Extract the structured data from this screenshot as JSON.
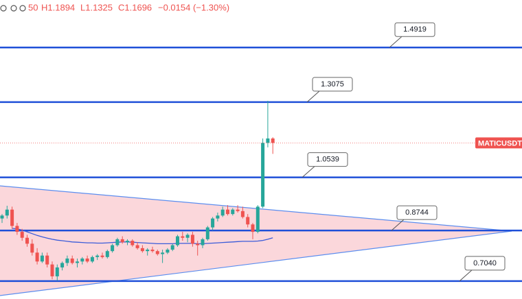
{
  "header": {
    "open_fragment": "50",
    "high": "H1.1894",
    "low": "L1.1325",
    "close": "C1.1696",
    "change": "−0.0154 (−1.30%)"
  },
  "chart_data": {
    "type": "candlestick",
    "symbol": "MATICUSDT",
    "ylim": [
      0.6435,
      1.652
    ],
    "up_color": "#26a69a",
    "down_color": "#ef5350",
    "ma_color": "#3a5bd9",
    "level_color": "#1e4fd8",
    "levels": [
      1.4919,
      1.3075,
      1.0539,
      0.8744,
      {
        "value": 0.704,
        "label": "0.7040"
      }
    ],
    "candles": [
      {
        "open": 0.915,
        "high": 0.93,
        "low": 0.9,
        "close": 0.925
      },
      {
        "open": 0.925,
        "high": 0.958,
        "low": 0.915,
        "close": 0.945
      },
      {
        "open": 0.945,
        "high": 0.955,
        "low": 0.88,
        "close": 0.89
      },
      {
        "open": 0.89,
        "high": 0.9,
        "low": 0.86,
        "close": 0.87
      },
      {
        "open": 0.87,
        "high": 0.88,
        "low": 0.84,
        "close": 0.85
      },
      {
        "open": 0.85,
        "high": 0.86,
        "low": 0.82,
        "close": 0.83
      },
      {
        "open": 0.83,
        "high": 0.845,
        "low": 0.79,
        "close": 0.8
      },
      {
        "open": 0.8,
        "high": 0.815,
        "low": 0.76,
        "close": 0.77
      },
      {
        "open": 0.77,
        "high": 0.8,
        "low": 0.765,
        "close": 0.79
      },
      {
        "open": 0.79,
        "high": 0.8,
        "low": 0.75,
        "close": 0.76
      },
      {
        "open": 0.76,
        "high": 0.77,
        "low": 0.71,
        "close": 0.72
      },
      {
        "open": 0.72,
        "high": 0.76,
        "low": 0.705,
        "close": 0.75
      },
      {
        "open": 0.75,
        "high": 0.77,
        "low": 0.74,
        "close": 0.765
      },
      {
        "open": 0.765,
        "high": 0.79,
        "low": 0.755,
        "close": 0.78
      },
      {
        "open": 0.78,
        "high": 0.79,
        "low": 0.76,
        "close": 0.765
      },
      {
        "open": 0.765,
        "high": 0.78,
        "low": 0.75,
        "close": 0.77
      },
      {
        "open": 0.77,
        "high": 0.785,
        "low": 0.76,
        "close": 0.78
      },
      {
        "open": 0.78,
        "high": 0.79,
        "low": 0.765,
        "close": 0.77
      },
      {
        "open": 0.77,
        "high": 0.79,
        "low": 0.765,
        "close": 0.785
      },
      {
        "open": 0.785,
        "high": 0.795,
        "low": 0.775,
        "close": 0.79
      },
      {
        "open": 0.79,
        "high": 0.8,
        "low": 0.78,
        "close": 0.785
      },
      {
        "open": 0.785,
        "high": 0.81,
        "low": 0.78,
        "close": 0.805
      },
      {
        "open": 0.805,
        "high": 0.83,
        "low": 0.8,
        "close": 0.825
      },
      {
        "open": 0.825,
        "high": 0.85,
        "low": 0.82,
        "close": 0.845
      },
      {
        "open": 0.845,
        "high": 0.855,
        "low": 0.83,
        "close": 0.835
      },
      {
        "open": 0.835,
        "high": 0.845,
        "low": 0.825,
        "close": 0.84
      },
      {
        "open": 0.84,
        "high": 0.845,
        "low": 0.82,
        "close": 0.825
      },
      {
        "open": 0.825,
        "high": 0.835,
        "low": 0.81,
        "close": 0.815
      },
      {
        "open": 0.815,
        "high": 0.825,
        "low": 0.8,
        "close": 0.805
      },
      {
        "open": 0.805,
        "high": 0.815,
        "low": 0.79,
        "close": 0.81
      },
      {
        "open": 0.81,
        "high": 0.82,
        "low": 0.8,
        "close": 0.805
      },
      {
        "open": 0.805,
        "high": 0.81,
        "low": 0.79,
        "close": 0.795
      },
      {
        "open": 0.795,
        "high": 0.81,
        "low": 0.765,
        "close": 0.8
      },
      {
        "open": 0.8,
        "high": 0.815,
        "low": 0.795,
        "close": 0.81
      },
      {
        "open": 0.81,
        "high": 0.83,
        "low": 0.805,
        "close": 0.825
      },
      {
        "open": 0.825,
        "high": 0.86,
        "low": 0.82,
        "close": 0.855
      },
      {
        "open": 0.855,
        "high": 0.87,
        "low": 0.84,
        "close": 0.85
      },
      {
        "open": 0.85,
        "high": 0.865,
        "low": 0.835,
        "close": 0.86
      },
      {
        "open": 0.86,
        "high": 0.87,
        "low": 0.82,
        "close": 0.83
      },
      {
        "open": 0.83,
        "high": 0.84,
        "low": 0.79,
        "close": 0.825
      },
      {
        "open": 0.825,
        "high": 0.85,
        "low": 0.815,
        "close": 0.845
      },
      {
        "open": 0.845,
        "high": 0.89,
        "low": 0.84,
        "close": 0.885
      },
      {
        "open": 0.885,
        "high": 0.92,
        "low": 0.875,
        "close": 0.915
      },
      {
        "open": 0.915,
        "high": 0.935,
        "low": 0.905,
        "close": 0.925
      },
      {
        "open": 0.925,
        "high": 0.955,
        "low": 0.92,
        "close": 0.945
      },
      {
        "open": 0.945,
        "high": 0.96,
        "low": 0.925,
        "close": 0.93
      },
      {
        "open": 0.93,
        "high": 0.95,
        "low": 0.925,
        "close": 0.945
      },
      {
        "open": 0.945,
        "high": 0.96,
        "low": 0.935,
        "close": 0.94
      },
      {
        "open": 0.94,
        "high": 0.955,
        "low": 0.915,
        "close": 0.92
      },
      {
        "open": 0.92,
        "high": 0.93,
        "low": 0.885,
        "close": 0.895
      },
      {
        "open": 0.895,
        "high": 0.9,
        "low": 0.845,
        "close": 0.87
      },
      {
        "open": 0.87,
        "high": 0.96,
        "low": 0.865,
        "close": 0.955
      },
      {
        "open": 0.955,
        "high": 1.185,
        "low": 0.95,
        "close": 1.17
      },
      {
        "open": 1.17,
        "high": 1.312,
        "low": 1.155,
        "close": 1.185
      },
      {
        "open": 1.185,
        "high": 1.189,
        "low": 1.133,
        "close": 1.17
      }
    ],
    "ma_values": [
      null,
      null,
      0.882,
      0.88,
      0.876,
      0.87,
      0.864,
      0.858,
      0.853,
      0.849,
      0.845,
      0.842,
      0.84,
      0.838,
      0.836,
      0.835,
      0.834,
      0.833,
      0.833,
      0.832,
      0.832,
      0.833,
      0.834,
      0.835,
      0.836,
      0.836,
      0.835,
      0.834,
      0.833,
      0.832,
      0.831,
      0.83,
      0.83,
      0.83,
      0.83,
      0.831,
      0.831,
      0.831,
      0.831,
      0.83,
      0.83,
      0.831,
      0.832,
      0.833,
      0.834,
      0.835,
      0.836,
      0.837,
      0.838,
      0.838,
      0.838,
      0.839,
      0.841,
      0.845,
      0.85
    ]
  }
}
